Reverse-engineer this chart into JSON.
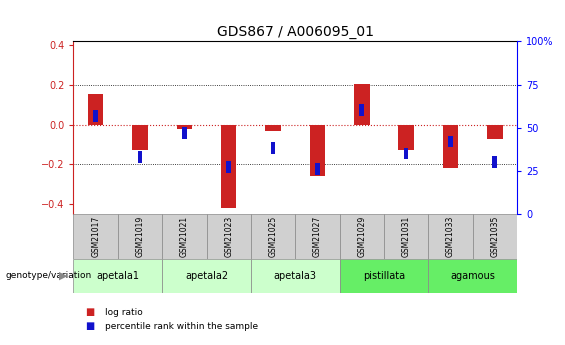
{
  "title": "GDS867 / A006095_01",
  "samples": [
    "GSM21017",
    "GSM21019",
    "GSM21021",
    "GSM21023",
    "GSM21025",
    "GSM21027",
    "GSM21029",
    "GSM21031",
    "GSM21033",
    "GSM21035"
  ],
  "log_ratio": [
    0.155,
    -0.13,
    -0.02,
    -0.42,
    -0.03,
    -0.26,
    0.205,
    -0.13,
    -0.22,
    -0.07
  ],
  "percentile_rank": [
    57,
    33,
    47,
    27,
    38,
    26,
    60,
    35,
    42,
    30
  ],
  "genotype_groups": [
    {
      "label": "apetala1",
      "samples": [
        0,
        1
      ],
      "color": "#ccffcc"
    },
    {
      "label": "apetala2",
      "samples": [
        2,
        3
      ],
      "color": "#ccffcc"
    },
    {
      "label": "apetala3",
      "samples": [
        4,
        5
      ],
      "color": "#ccffcc"
    },
    {
      "label": "pistillata",
      "samples": [
        6,
        7
      ],
      "color": "#66ee66"
    },
    {
      "label": "agamous",
      "samples": [
        8,
        9
      ],
      "color": "#66ee66"
    }
  ],
  "ylim_left": [
    -0.45,
    0.42
  ],
  "yticks_left": [
    -0.4,
    -0.2,
    0.0,
    0.2,
    0.4
  ],
  "yticks_right": [
    0,
    25,
    50,
    75,
    100
  ],
  "ylim_right": [
    0,
    100
  ],
  "bar_color_red": "#cc2222",
  "bar_color_blue": "#1111cc",
  "title_fontsize": 10,
  "tick_fontsize": 7,
  "label_fontsize": 7,
  "bar_width": 0.35,
  "blue_square_size": 0.06,
  "sample_bg": "#d0d0d0",
  "geno_label": "genotype/variation"
}
